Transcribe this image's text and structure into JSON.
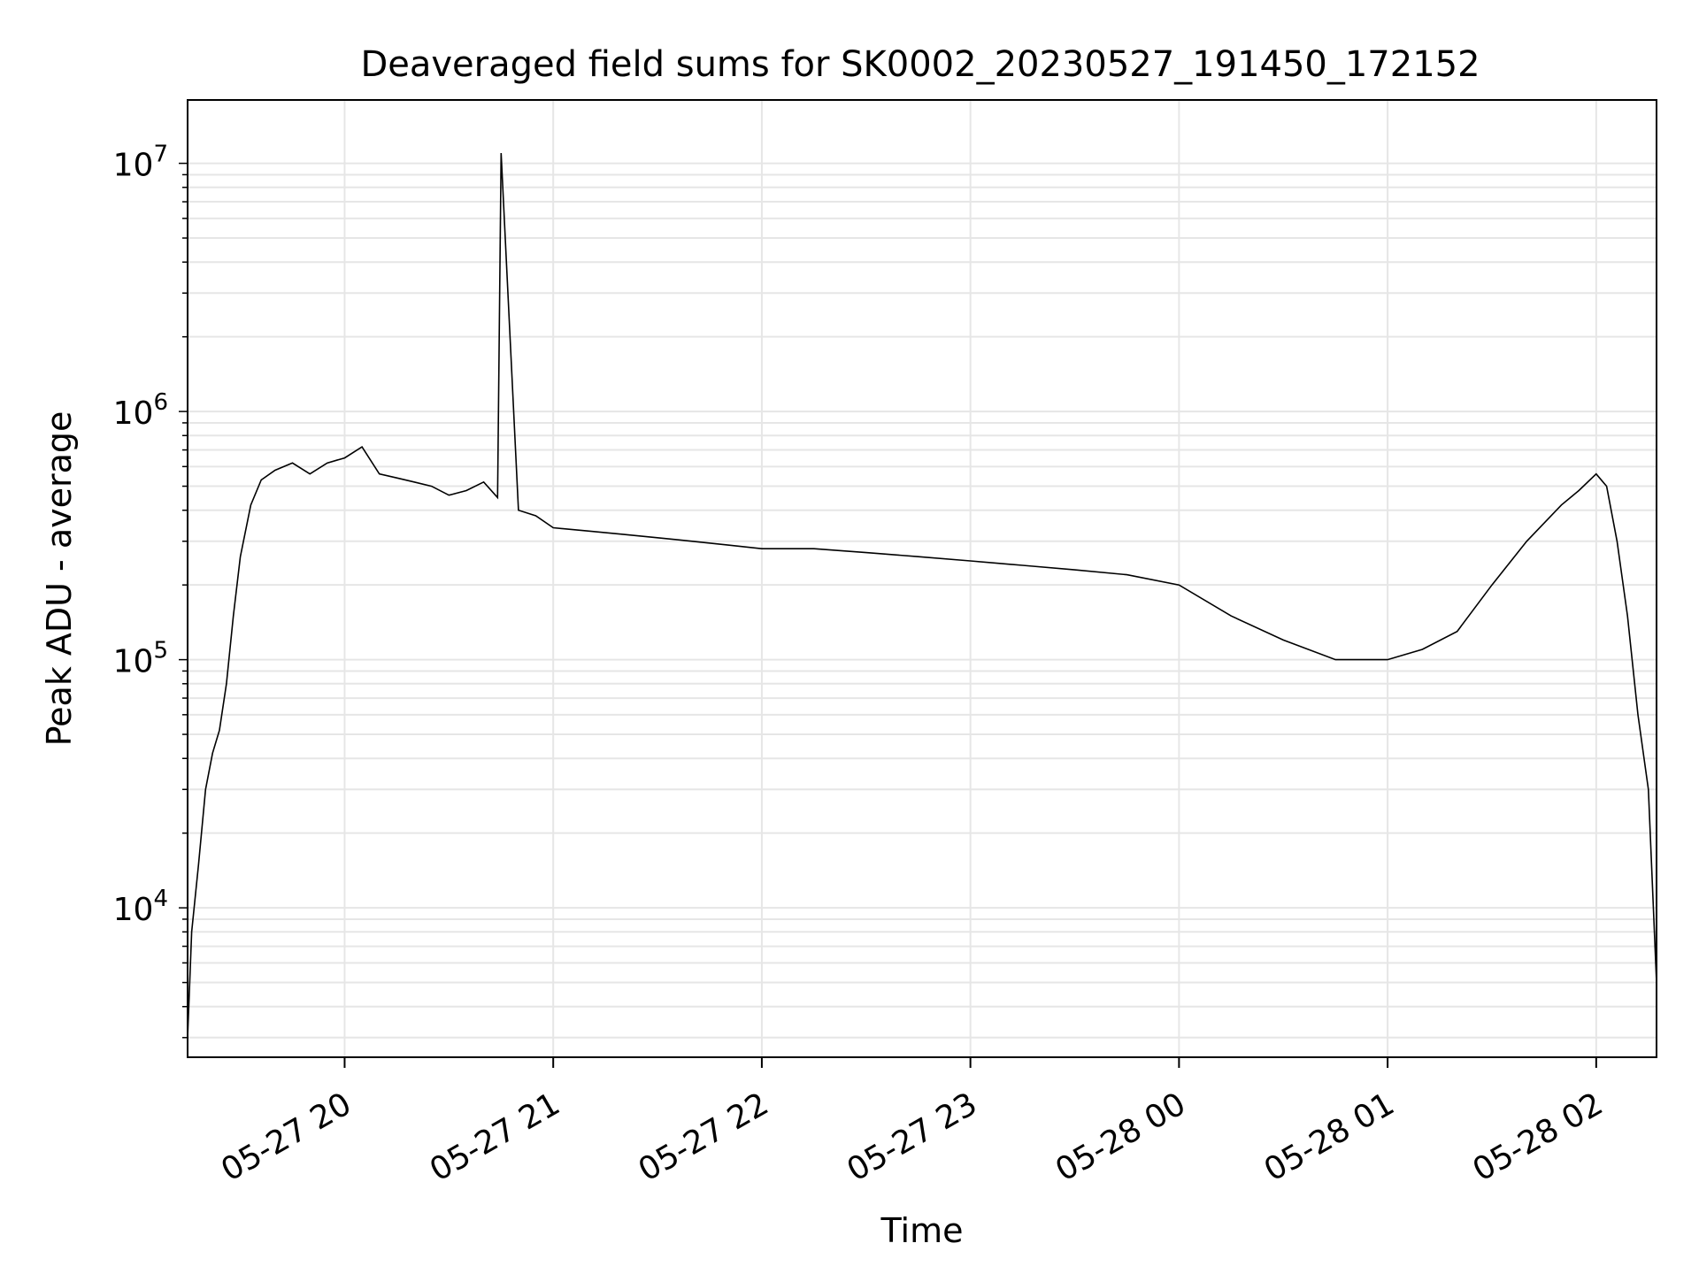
{
  "chart_data": {
    "type": "line",
    "title": "Deaveraged field sums for SK0002_20230527_191450_172152",
    "xlabel": "Time",
    "ylabel": "Peak ADU - average",
    "yscale": "log",
    "ylim": [
      2500,
      18000000
    ],
    "xlim": [
      "2023-05-27 19:14:50",
      "2023-05-28 02:17:21"
    ],
    "grid": true,
    "line_color": "#000000",
    "grid_color": "#e6e6e6",
    "x_ticks": [
      {
        "label": "05-27 20",
        "value": "2023-05-27 20:00"
      },
      {
        "label": "05-27 21",
        "value": "2023-05-27 21:00"
      },
      {
        "label": "05-27 22",
        "value": "2023-05-27 22:00"
      },
      {
        "label": "05-27 23",
        "value": "2023-05-27 23:00"
      },
      {
        "label": "05-28 00",
        "value": "2023-05-28 00:00"
      },
      {
        "label": "05-28 01",
        "value": "2023-05-28 01:00"
      },
      {
        "label": "05-28 02",
        "value": "2023-05-28 02:00"
      }
    ],
    "y_ticks": [
      {
        "base": "10",
        "exp": "4",
        "value": 10000
      },
      {
        "base": "10",
        "exp": "5",
        "value": 100000
      },
      {
        "base": "10",
        "exp": "6",
        "value": 1000000
      },
      {
        "base": "10",
        "exp": "7",
        "value": 10000000
      }
    ],
    "series": [
      {
        "x": [
          "2023-05-27 19:14:50",
          "2023-05-27 19:16",
          "2023-05-27 19:18",
          "2023-05-27 19:20",
          "2023-05-27 19:22",
          "2023-05-27 19:24",
          "2023-05-27 19:26",
          "2023-05-27 19:28",
          "2023-05-27 19:30",
          "2023-05-27 19:33",
          "2023-05-27 19:36",
          "2023-05-27 19:40",
          "2023-05-27 19:45",
          "2023-05-27 19:50",
          "2023-05-27 19:55",
          "2023-05-27 20:00",
          "2023-05-27 20:05",
          "2023-05-27 20:10",
          "2023-05-27 20:15",
          "2023-05-27 20:20",
          "2023-05-27 20:25",
          "2023-05-27 20:30",
          "2023-05-27 20:35",
          "2023-05-27 20:40",
          "2023-05-27 20:44",
          "2023-05-27 20:45",
          "2023-05-27 20:50",
          "2023-05-27 20:55",
          "2023-05-27 21:00",
          "2023-05-27 21:10",
          "2023-05-27 21:20",
          "2023-05-27 21:30",
          "2023-05-27 21:40",
          "2023-05-27 21:50",
          "2023-05-27 22:00",
          "2023-05-27 22:15",
          "2023-05-27 22:30",
          "2023-05-27 22:45",
          "2023-05-27 23:00",
          "2023-05-27 23:15",
          "2023-05-27 23:30",
          "2023-05-27 23:45",
          "2023-05-28 00:00",
          "2023-05-28 00:15",
          "2023-05-28 00:30",
          "2023-05-28 00:45",
          "2023-05-28 01:00",
          "2023-05-28 01:10",
          "2023-05-28 01:20",
          "2023-05-28 01:30",
          "2023-05-28 01:40",
          "2023-05-28 01:50",
          "2023-05-28 01:55",
          "2023-05-28 02:00",
          "2023-05-28 02:03",
          "2023-05-28 02:06",
          "2023-05-28 02:09",
          "2023-05-28 02:12",
          "2023-05-28 02:15",
          "2023-05-28 02:17:21"
        ],
        "y": [
          3000,
          8000,
          15000,
          30000,
          42000,
          52000,
          80000,
          150000,
          260000,
          420000,
          530000,
          580000,
          620000,
          560000,
          620000,
          650000,
          720000,
          560000,
          540000,
          520000,
          500000,
          460000,
          480000,
          520000,
          450000,
          11000000,
          400000,
          380000,
          340000,
          330000,
          320000,
          310000,
          300000,
          290000,
          280000,
          280000,
          270000,
          260000,
          250000,
          240000,
          230000,
          220000,
          200000,
          150000,
          120000,
          100000,
          100000,
          110000,
          130000,
          200000,
          300000,
          420000,
          480000,
          560000,
          500000,
          300000,
          150000,
          60000,
          30000,
          5000
        ]
      }
    ]
  }
}
